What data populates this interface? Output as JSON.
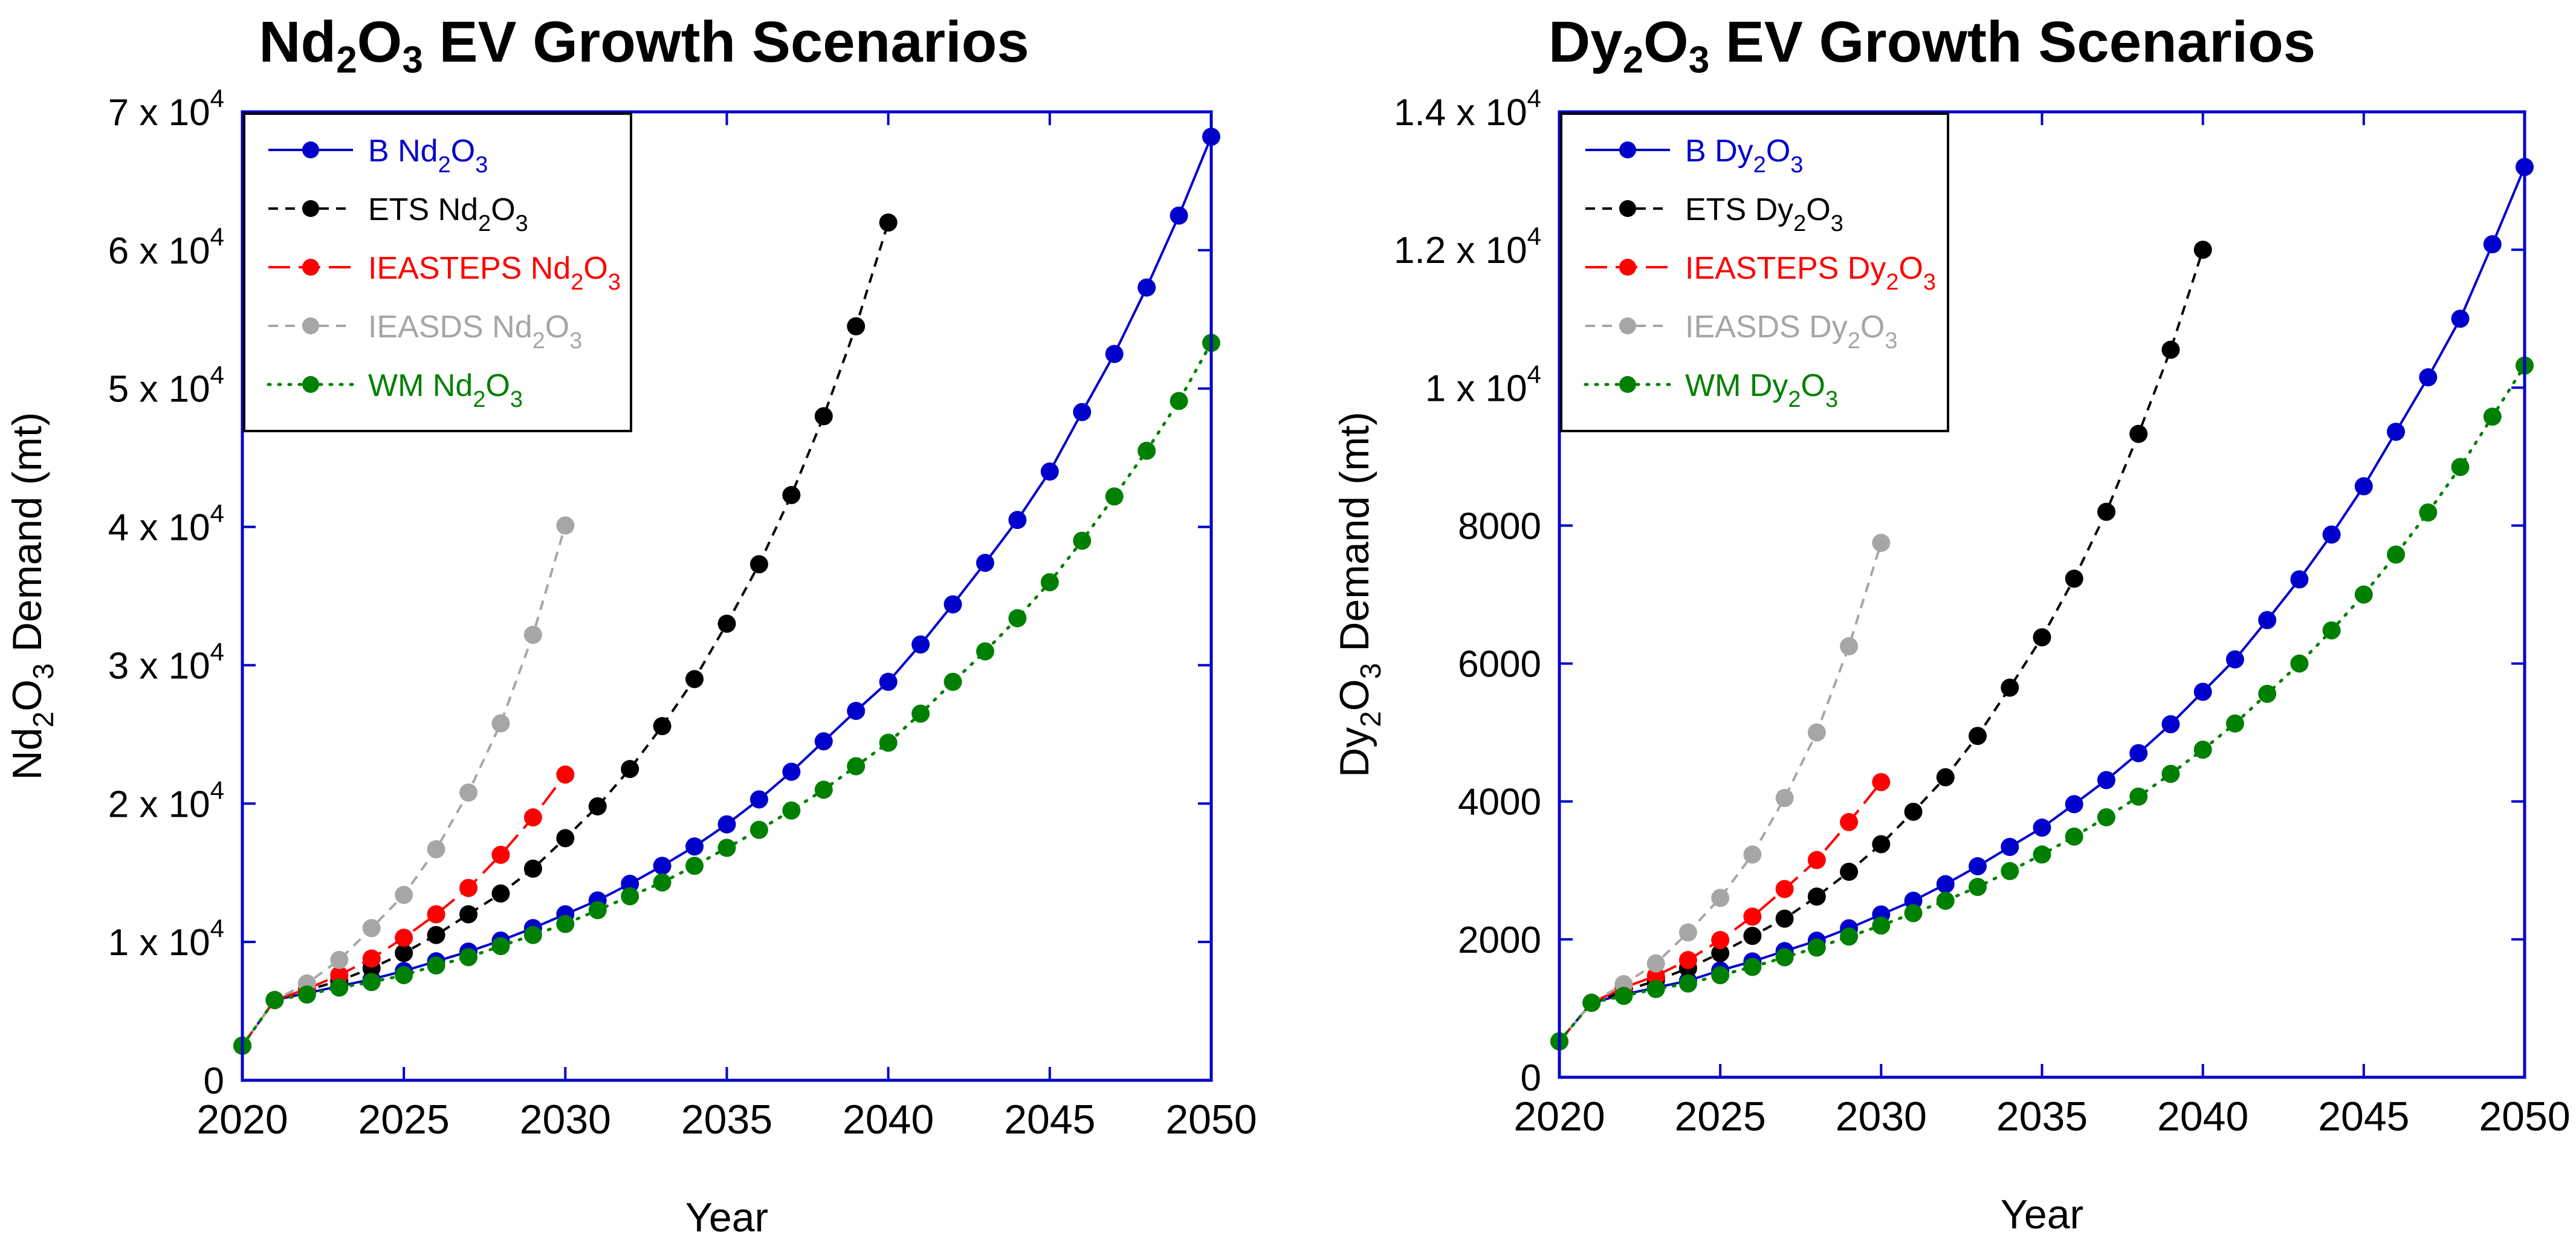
{
  "chart_data": [
    {
      "type": "line",
      "title_parts": [
        "Nd",
        "2",
        "O",
        "3",
        " EV Growth Scenarios"
      ],
      "xlabel": "Year",
      "ylabel_parts": [
        "Nd",
        "2",
        "O",
        "3",
        " Demand (mt)"
      ],
      "xlim": [
        2020,
        2050
      ],
      "ylim": [
        0,
        70000
      ],
      "xticks": [
        "2020",
        "2025",
        "2030",
        "2035",
        "2040",
        "2045",
        "2050"
      ],
      "yticks": [
        {
          "value": 0,
          "mantissa": "0",
          "exponent": ""
        },
        {
          "value": 10000,
          "mantissa": "1 x 10",
          "exponent": "4"
        },
        {
          "value": 20000,
          "mantissa": "2 x 10",
          "exponent": "4"
        },
        {
          "value": 30000,
          "mantissa": "3 x 10",
          "exponent": "4"
        },
        {
          "value": 40000,
          "mantissa": "4 x 10",
          "exponent": "4"
        },
        {
          "value": 50000,
          "mantissa": "5 x 10",
          "exponent": "4"
        },
        {
          "value": 60000,
          "mantissa": "6 x 10",
          "exponent": "4"
        },
        {
          "value": 70000,
          "mantissa": "7 x 10",
          "exponent": "4"
        }
      ],
      "legend_position": "top-left",
      "series": [
        {
          "name": "B Nd2O3",
          "label_parts": [
            "B Nd",
            "2",
            "O",
            "3"
          ],
          "color": "#0000cc",
          "dash": "solid",
          "x": [
            2020,
            2021,
            2022,
            2023,
            2024,
            2025,
            2026,
            2027,
            2028,
            2029,
            2030,
            2031,
            2032,
            2033,
            2034,
            2035,
            2036,
            2037,
            2038,
            2039,
            2040,
            2041,
            2042,
            2043,
            2044,
            2045,
            2046,
            2047,
            2048,
            2049,
            2050
          ],
          "values": [
            2500,
            5800,
            6300,
            6800,
            7300,
            7900,
            8600,
            9300,
            10100,
            11000,
            12000,
            13000,
            14200,
            15500,
            16900,
            18500,
            20300,
            22300,
            24500,
            26700,
            28800,
            31500,
            34400,
            37400,
            40500,
            44000,
            48300,
            52500,
            57300,
            62500,
            68200
          ]
        },
        {
          "name": "ETS Nd2O3",
          "label_parts": [
            "ETS Nd",
            "2",
            "O",
            "3"
          ],
          "color": "#000000",
          "dash": "dashed",
          "x": [
            2020,
            2021,
            2022,
            2023,
            2024,
            2025,
            2026,
            2027,
            2028,
            2029,
            2030,
            2031,
            2032,
            2033,
            2034,
            2035,
            2036,
            2037,
            2038,
            2039,
            2040
          ],
          "values": [
            2500,
            5800,
            6500,
            7200,
            8100,
            9200,
            10500,
            12000,
            13500,
            15300,
            17500,
            19800,
            22500,
            25600,
            29000,
            33000,
            37300,
            42300,
            48000,
            54500,
            62000
          ]
        },
        {
          "name": "IEASTEPS Nd2O3",
          "label_parts": [
            "IEASTEPS Nd",
            "2",
            "O",
            "3"
          ],
          "color": "#ff0000",
          "dash": "longdash",
          "x": [
            2020,
            2021,
            2022,
            2023,
            2024,
            2025,
            2026,
            2027,
            2028,
            2029,
            2030
          ],
          "values": [
            2500,
            5800,
            6600,
            7600,
            8800,
            10300,
            12000,
            13900,
            16300,
            19000,
            22100
          ]
        },
        {
          "name": "IEASDS Nd2O3",
          "label_parts": [
            "IEASDS Nd",
            "2",
            "O",
            "3"
          ],
          "color": "#a6a6a6",
          "dash": "dashed",
          "x": [
            2020,
            2021,
            2022,
            2023,
            2024,
            2025,
            2026,
            2027,
            2028,
            2029,
            2030
          ],
          "values": [
            2500,
            5800,
            7000,
            8700,
            11000,
            13400,
            16700,
            20800,
            25800,
            32200,
            40100
          ]
        },
        {
          "name": "WM Nd2O3",
          "label_parts": [
            "WM Nd",
            "2",
            "O",
            "3"
          ],
          "color": "#008000",
          "dash": "dotted",
          "x": [
            2020,
            2021,
            2022,
            2023,
            2024,
            2025,
            2026,
            2027,
            2028,
            2029,
            2030,
            2031,
            2032,
            2033,
            2034,
            2035,
            2036,
            2037,
            2038,
            2039,
            2040,
            2041,
            2042,
            2043,
            2044,
            2045,
            2046,
            2047,
            2048,
            2049,
            2050
          ],
          "values": [
            2500,
            5800,
            6200,
            6700,
            7100,
            7600,
            8300,
            8900,
            9700,
            10500,
            11300,
            12300,
            13300,
            14300,
            15500,
            16800,
            18100,
            19500,
            21000,
            22700,
            24400,
            26500,
            28800,
            31000,
            33400,
            36000,
            39000,
            42200,
            45500,
            49100,
            53300
          ]
        }
      ]
    },
    {
      "type": "line",
      "title_parts": [
        "Dy",
        "2",
        "O",
        "3",
        " EV Growth Scenarios"
      ],
      "xlabel": "Year",
      "ylabel_parts": [
        "Dy",
        "2",
        "O",
        "3",
        " Demand (mt)"
      ],
      "xlim": [
        2020,
        2050
      ],
      "ylim": [
        0,
        14000
      ],
      "xticks": [
        "2020",
        "2025",
        "2030",
        "2035",
        "2040",
        "2045",
        "2050"
      ],
      "yticks": [
        {
          "value": 0,
          "mantissa": "0",
          "exponent": ""
        },
        {
          "value": 2000,
          "mantissa": "2000",
          "exponent": ""
        },
        {
          "value": 4000,
          "mantissa": "4000",
          "exponent": ""
        },
        {
          "value": 6000,
          "mantissa": "6000",
          "exponent": ""
        },
        {
          "value": 8000,
          "mantissa": "8000",
          "exponent": ""
        },
        {
          "value": 10000,
          "mantissa": "1 x 10",
          "exponent": "4"
        },
        {
          "value": 12000,
          "mantissa": "1.2 x 10",
          "exponent": "4"
        },
        {
          "value": 14000,
          "mantissa": "1.4 x 10",
          "exponent": "4"
        }
      ],
      "legend_position": "top-left",
      "series": [
        {
          "name": "B Dy2O3",
          "label_parts": [
            "B Dy",
            "2",
            "O",
            "3"
          ],
          "color": "#0000cc",
          "dash": "solid",
          "x": [
            2020,
            2021,
            2022,
            2023,
            2024,
            2025,
            2026,
            2027,
            2028,
            2029,
            2030,
            2031,
            2032,
            2033,
            2034,
            2035,
            2036,
            2037,
            2038,
            2039,
            2040,
            2041,
            2042,
            2043,
            2044,
            2045,
            2046,
            2047,
            2048,
            2049,
            2050
          ],
          "values": [
            520,
            1080,
            1200,
            1300,
            1400,
            1550,
            1680,
            1830,
            1980,
            2160,
            2360,
            2560,
            2800,
            3060,
            3340,
            3620,
            3960,
            4310,
            4700,
            5120,
            5590,
            6060,
            6630,
            7220,
            7870,
            8570,
            9360,
            10150,
            11000,
            12080,
            13200
          ]
        },
        {
          "name": "ETS Dy2O3",
          "label_parts": [
            "ETS Dy",
            "2",
            "O",
            "3"
          ],
          "color": "#000000",
          "dash": "dashed",
          "x": [
            2020,
            2021,
            2022,
            2023,
            2024,
            2025,
            2026,
            2027,
            2028,
            2029,
            2030,
            2031,
            2032,
            2033,
            2034,
            2035,
            2036,
            2037,
            2038,
            2039,
            2040
          ],
          "values": [
            520,
            1080,
            1250,
            1400,
            1580,
            1800,
            2050,
            2300,
            2620,
            2980,
            3380,
            3850,
            4350,
            4950,
            5650,
            6380,
            7230,
            8200,
            9330,
            10550,
            12000
          ]
        },
        {
          "name": "IEASTEPS Dy2O3",
          "label_parts": [
            "IEASTEPS Dy",
            "2",
            "O",
            "3"
          ],
          "color": "#ff0000",
          "dash": "longdash",
          "x": [
            2020,
            2021,
            2022,
            2023,
            2024,
            2025,
            2026,
            2027,
            2028,
            2029,
            2030
          ],
          "values": [
            520,
            1080,
            1300,
            1470,
            1700,
            1990,
            2330,
            2730,
            3150,
            3700,
            4280
          ]
        },
        {
          "name": "IEASDS Dy2O3",
          "label_parts": [
            "IEASDS Dy",
            "2",
            "O",
            "3"
          ],
          "color": "#a6a6a6",
          "dash": "dashed",
          "x": [
            2020,
            2021,
            2022,
            2023,
            2024,
            2025,
            2026,
            2027,
            2028,
            2029,
            2030
          ],
          "values": [
            520,
            1080,
            1350,
            1650,
            2100,
            2600,
            3230,
            4050,
            5000,
            6250,
            7750
          ]
        },
        {
          "name": "WM Dy2O3",
          "label_parts": [
            "WM Dy",
            "2",
            "O",
            "3"
          ],
          "color": "#008000",
          "dash": "dotted",
          "x": [
            2020,
            2021,
            2022,
            2023,
            2024,
            2025,
            2026,
            2027,
            2028,
            2029,
            2030,
            2031,
            2032,
            2033,
            2034,
            2035,
            2036,
            2037,
            2038,
            2039,
            2040,
            2041,
            2042,
            2043,
            2044,
            2045,
            2046,
            2047,
            2048,
            2049,
            2050
          ],
          "values": [
            520,
            1080,
            1180,
            1280,
            1360,
            1480,
            1600,
            1740,
            1880,
            2040,
            2200,
            2380,
            2560,
            2760,
            2990,
            3230,
            3490,
            3770,
            4070,
            4400,
            4750,
            5130,
            5560,
            6000,
            6480,
            7000,
            7580,
            8190,
            8850,
            9580,
            10320
          ]
        }
      ]
    }
  ]
}
